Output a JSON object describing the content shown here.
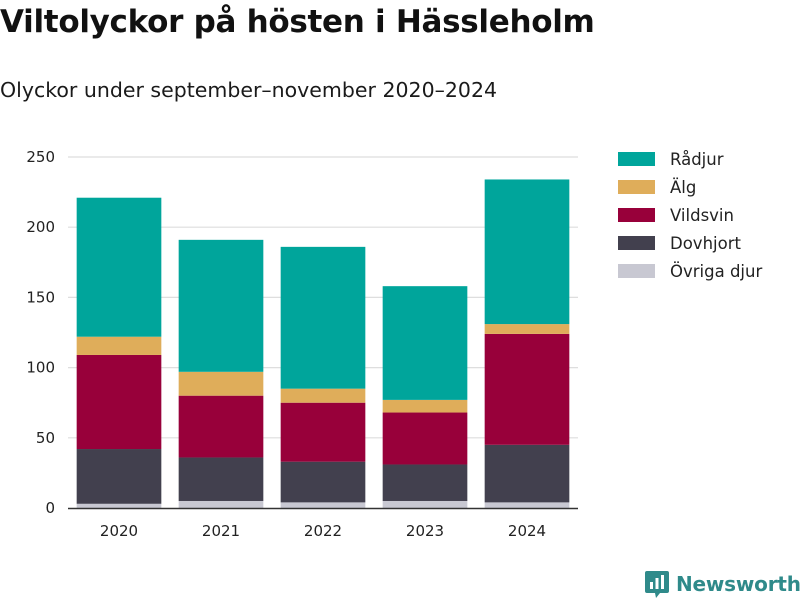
{
  "header": {
    "title": "Viltolyckor på hösten i Hässleholm",
    "subtitle": "Olyckor under september–november 2020–2024"
  },
  "brand": {
    "name": "Newsworthy",
    "icon": "newsworthy-logo-icon",
    "color": "#2f8a8a"
  },
  "chart_data": {
    "type": "bar",
    "stacked": true,
    "title": "Viltolyckor på hösten i Hässleholm",
    "subtitle": "Olyckor under september–november 2020–2024",
    "categories": [
      "2020",
      "2021",
      "2022",
      "2023",
      "2024"
    ],
    "series": [
      {
        "name": "Övriga djur",
        "color": "#c8c8d2",
        "values": [
          3,
          5,
          4,
          5,
          4
        ]
      },
      {
        "name": "Dovhjort",
        "color": "#42404e",
        "values": [
          39,
          31,
          29,
          26,
          41
        ]
      },
      {
        "name": "Vildsvin",
        "color": "#98003a",
        "values": [
          67,
          44,
          42,
          37,
          79
        ]
      },
      {
        "name": "Älg",
        "color": "#dfad5a",
        "values": [
          13,
          17,
          10,
          9,
          7
        ]
      },
      {
        "name": "Rådjur",
        "color": "#00a59b",
        "values": [
          99,
          94,
          101,
          81,
          103
        ]
      }
    ],
    "legend_order": [
      "Rådjur",
      "Älg",
      "Vildsvin",
      "Dovhjort",
      "Övriga djur"
    ],
    "ylim": [
      0,
      250
    ],
    "yticks": [
      0,
      50,
      100,
      150,
      200,
      250
    ],
    "grid": true,
    "legend_position": "right-top",
    "xlabel": "",
    "ylabel": ""
  }
}
